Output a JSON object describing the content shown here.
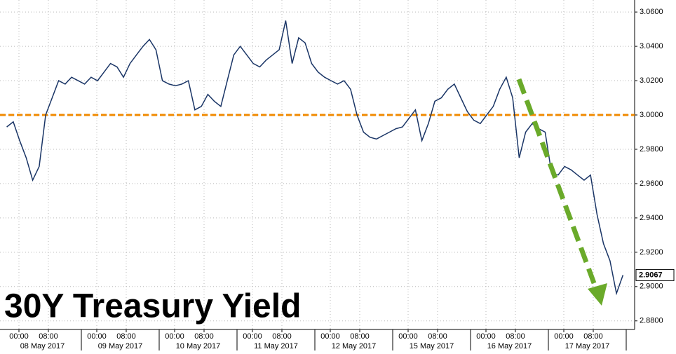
{
  "chart_data": {
    "type": "line",
    "title": "30Y Treasury Yield",
    "color": "#1a3566",
    "values": [
      2.993,
      2.996,
      2.985,
      2.975,
      2.962,
      2.97,
      3.0,
      3.01,
      3.02,
      3.018,
      3.022,
      3.02,
      3.018,
      3.022,
      3.02,
      3.025,
      3.03,
      3.028,
      3.022,
      3.03,
      3.035,
      3.04,
      3.044,
      3.038,
      3.02,
      3.018,
      3.017,
      3.018,
      3.02,
      3.003,
      3.005,
      3.012,
      3.008,
      3.005,
      3.02,
      3.035,
      3.04,
      3.035,
      3.03,
      3.028,
      3.032,
      3.035,
      3.038,
      3.055,
      3.03,
      3.045,
      3.042,
      3.03,
      3.025,
      3.022,
      3.02,
      3.018,
      3.02,
      3.015,
      3.0,
      2.99,
      2.987,
      2.986,
      2.988,
      2.99,
      2.992,
      2.993,
      2.998,
      3.003,
      2.985,
      2.995,
      3.008,
      3.01,
      3.015,
      3.018,
      3.01,
      3.002,
      2.997,
      2.995,
      3.0,
      3.005,
      3.015,
      3.022,
      3.01,
      2.975,
      2.99,
      2.995,
      2.992,
      2.99,
      2.966,
      2.965,
      2.97,
      2.968,
      2.965,
      2.962,
      2.965,
      2.942,
      2.925,
      2.915,
      2.896,
      2.9067
    ],
    "value_labels": [
      null,
      null,
      null,
      null,
      null,
      null,
      null,
      null,
      null,
      null,
      null,
      null,
      null,
      null,
      null,
      null,
      null,
      null,
      null,
      null,
      null,
      null,
      null,
      null,
      null,
      null,
      null,
      null,
      null,
      null,
      null,
      null,
      null,
      null,
      null,
      null,
      null,
      null,
      null,
      null,
      null,
      null,
      null,
      null,
      null,
      null,
      null,
      null,
      null,
      null,
      null,
      null,
      null,
      null,
      null,
      null,
      null,
      null,
      null,
      null,
      null,
      null,
      null,
      null,
      null,
      null,
      null,
      null,
      null,
      null,
      null,
      null,
      null,
      null,
      null,
      null,
      null,
      null,
      null,
      null,
      null,
      null,
      null,
      null,
      null,
      null,
      null,
      null,
      null,
      null,
      null,
      null,
      null,
      null,
      null,
      "2.9067"
    ],
    "ylim": [
      2.875,
      3.067
    ],
    "yticks": [
      {
        "value": 3.06,
        "label": "3.0600"
      },
      {
        "value": 3.04,
        "label": "3.0400"
      },
      {
        "value": 3.02,
        "label": "3.0200"
      },
      {
        "value": 3.0,
        "label": "3.0000"
      },
      {
        "value": 2.98,
        "label": "2.9800"
      },
      {
        "value": 2.96,
        "label": "2.9600"
      },
      {
        "value": 2.94,
        "label": "2.9400"
      },
      {
        "value": 2.92,
        "label": "2.9200"
      },
      {
        "value": 2.9,
        "label": "2.9000"
      },
      {
        "value": 2.88,
        "label": "2.8800"
      }
    ],
    "grid": true,
    "reference_line": {
      "value": 3.0,
      "color": "#f08a00"
    },
    "days": [
      {
        "date": "08 May 2017",
        "times": [
          "00:00",
          "08:00"
        ]
      },
      {
        "date": "09 May 2017",
        "times": [
          "00:00",
          "08:00"
        ]
      },
      {
        "date": "10 May 2017",
        "times": [
          "00:00",
          "08:00"
        ]
      },
      {
        "date": "11 May 2017",
        "times": [
          "00:00",
          "08:00"
        ]
      },
      {
        "date": "12 May 2017",
        "times": [
          "00:00",
          "08:00"
        ]
      },
      {
        "date": "15 May 2017",
        "times": [
          "00:00",
          "08:00"
        ]
      },
      {
        "date": "16 May 2017",
        "times": [
          "00:00",
          "08:00"
        ]
      },
      {
        "date": "17 May 2017",
        "times": [
          "00:00",
          "08:00"
        ]
      }
    ]
  }
}
